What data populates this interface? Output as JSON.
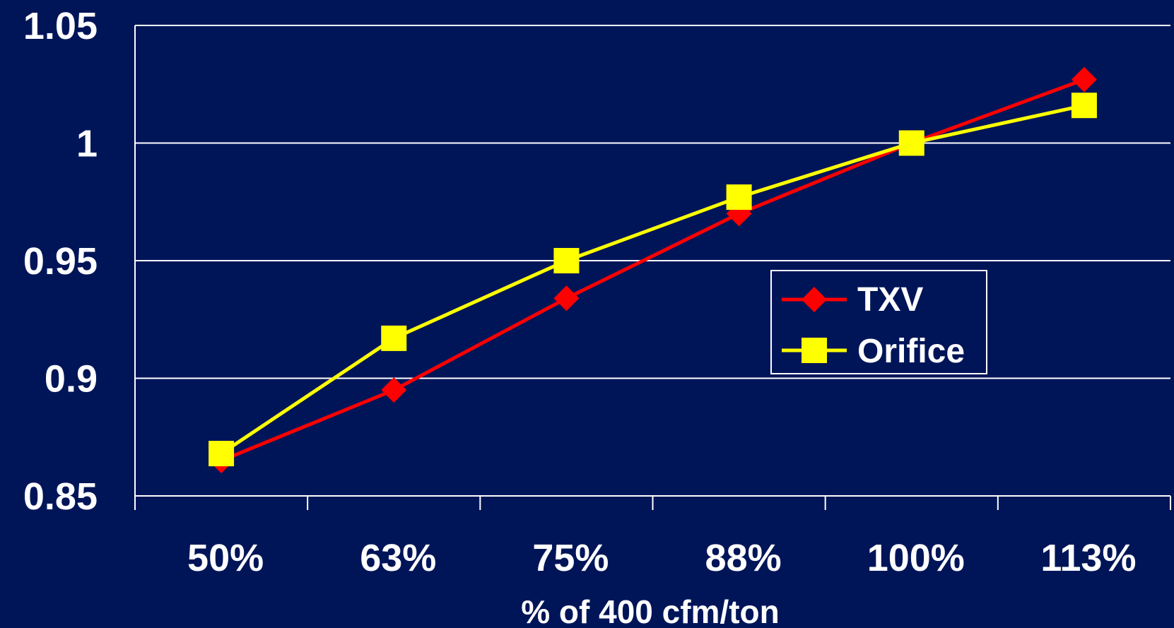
{
  "chart_data": {
    "type": "line",
    "categories": [
      "50%",
      "63%",
      "75%",
      "88%",
      "100%",
      "113%"
    ],
    "xlabel": "% of 400 cfm/ton",
    "ylabel": "",
    "ylim": [
      0.85,
      1.05
    ],
    "yticks": [
      "0.85",
      "0.9",
      "0.95",
      "1",
      "1.05"
    ],
    "grid": "horizontal",
    "legend_position": "center-right",
    "series": [
      {
        "name": "TXV",
        "color": "#ff0000",
        "marker": "diamond",
        "values": [
          0.865,
          0.895,
          0.934,
          0.97,
          1.0,
          1.027
        ]
      },
      {
        "name": "Orifice",
        "color": "#ffff00",
        "marker": "square",
        "values": [
          0.868,
          0.917,
          0.95,
          0.977,
          1.0,
          1.016
        ]
      }
    ]
  },
  "colors": {
    "background": "#001558",
    "axis": "#ffffff",
    "text": "#ffffff"
  }
}
